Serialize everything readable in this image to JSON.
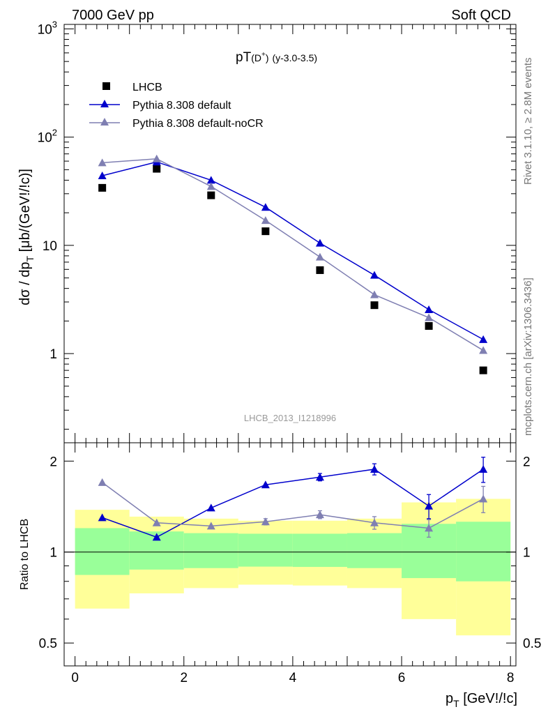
{
  "header": {
    "beam": "7000 GeV pp",
    "process": "Soft QCD"
  },
  "side_labels": {
    "rivet": "Rivet 3.1.10, ≥ 2.8M events",
    "source": "mcplots.cern.ch [arXiv:1306.3436]"
  },
  "analysis_id": "LHCB_2013_I1218996",
  "chart_data": [
    {
      "type": "scatter",
      "panel": "main",
      "title": "pT(D⁺) (y-3.0-3.5)",
      "title_main": "pT",
      "title_paren": "(D",
      "title_sup": "+",
      "title_close": ")",
      "title_suffix": "(y-3.0-3.5)",
      "ylabel": "dσ / dp_T [μb/(GeV!/!c)]",
      "ylabel_main": "dσ / dp",
      "ylabel_sub": "T",
      "ylabel_tail": " [μb/(GeV!/!c)]",
      "y_scale": "log",
      "ylim": [
        0.15,
        1100
      ],
      "xlim": [
        -0.2,
        8.1
      ],
      "ytick_labels": [
        "1",
        "10",
        "10",
        "10"
      ],
      "ytick_exps": [
        "",
        "",
        "2",
        "3"
      ],
      "legend_position": "top-left",
      "x": [
        0.5,
        1.5,
        2.5,
        3.5,
        4.5,
        5.5,
        6.5,
        7.5
      ],
      "series": [
        {
          "name": "LHCB",
          "marker": "square",
          "color": "#000000",
          "values": [
            34,
            51,
            29,
            13.5,
            5.9,
            2.8,
            1.8,
            0.7
          ]
        },
        {
          "name": "Pythia 8.308 default",
          "marker": "triangle",
          "color": "#0000cc",
          "values": [
            44,
            59,
            40,
            22.5,
            10.5,
            5.3,
            2.55,
            1.35
          ]
        },
        {
          "name": "Pythia 8.308 default-noCR",
          "marker": "triangle",
          "color": "#7f7fb2",
          "values": [
            58,
            63,
            35,
            17,
            7.8,
            3.5,
            2.15,
            1.07
          ]
        }
      ]
    },
    {
      "type": "line",
      "panel": "ratio",
      "ylabel": "Ratio to LHCB",
      "y_scale": "log",
      "ylim": [
        0.42,
        2.3
      ],
      "xlim": [
        -0.2,
        8.1
      ],
      "xlabel": "p_T [GeV!/!c]",
      "xlabel_main": "p",
      "xlabel_sub": "T",
      "xlabel_tail": " [GeV!/!c]",
      "xtick_labels": [
        "0",
        "2",
        "4",
        "6",
        "8"
      ],
      "xtick_values": [
        0,
        2,
        4,
        6,
        8
      ],
      "ytick_labels": [
        "0.5",
        "1",
        "2"
      ],
      "ytick_values": [
        0.5,
        1,
        2
      ],
      "bins": [
        [
          0,
          1
        ],
        [
          1,
          2
        ],
        [
          2,
          3
        ],
        [
          3,
          4
        ],
        [
          4,
          5
        ],
        [
          5,
          6
        ],
        [
          6,
          7
        ],
        [
          7,
          8
        ]
      ],
      "band_yellow": [
        [
          0.65,
          1.38
        ],
        [
          0.73,
          1.31
        ],
        [
          0.76,
          1.29
        ],
        [
          0.78,
          1.27
        ],
        [
          0.775,
          1.27
        ],
        [
          0.76,
          1.29
        ],
        [
          0.6,
          1.46
        ],
        [
          0.53,
          1.5
        ]
      ],
      "band_green": [
        [
          0.84,
          1.2
        ],
        [
          0.875,
          1.17
        ],
        [
          0.885,
          1.155
        ],
        [
          0.895,
          1.15
        ],
        [
          0.893,
          1.15
        ],
        [
          0.885,
          1.155
        ],
        [
          0.82,
          1.24
        ],
        [
          0.8,
          1.26
        ]
      ],
      "x": [
        0.5,
        1.5,
        2.5,
        3.5,
        4.5,
        5.5,
        6.5,
        7.5
      ],
      "series": [
        {
          "name": "Pythia 8.308 default",
          "color": "#0000cc",
          "values": [
            1.3,
            1.12,
            1.4,
            1.67,
            1.77,
            1.88,
            1.42,
            1.88
          ],
          "errors": [
            0,
            0,
            0,
            0,
            0.05,
            0.08,
            0.13,
            0.18
          ]
        },
        {
          "name": "Pythia 8.308 default-noCR",
          "color": "#7f7fb2",
          "values": [
            1.7,
            1.25,
            1.22,
            1.26,
            1.33,
            1.25,
            1.2,
            1.5
          ],
          "errors": [
            0,
            0,
            0,
            0.03,
            0.04,
            0.06,
            0.08,
            0.15
          ]
        }
      ]
    }
  ]
}
